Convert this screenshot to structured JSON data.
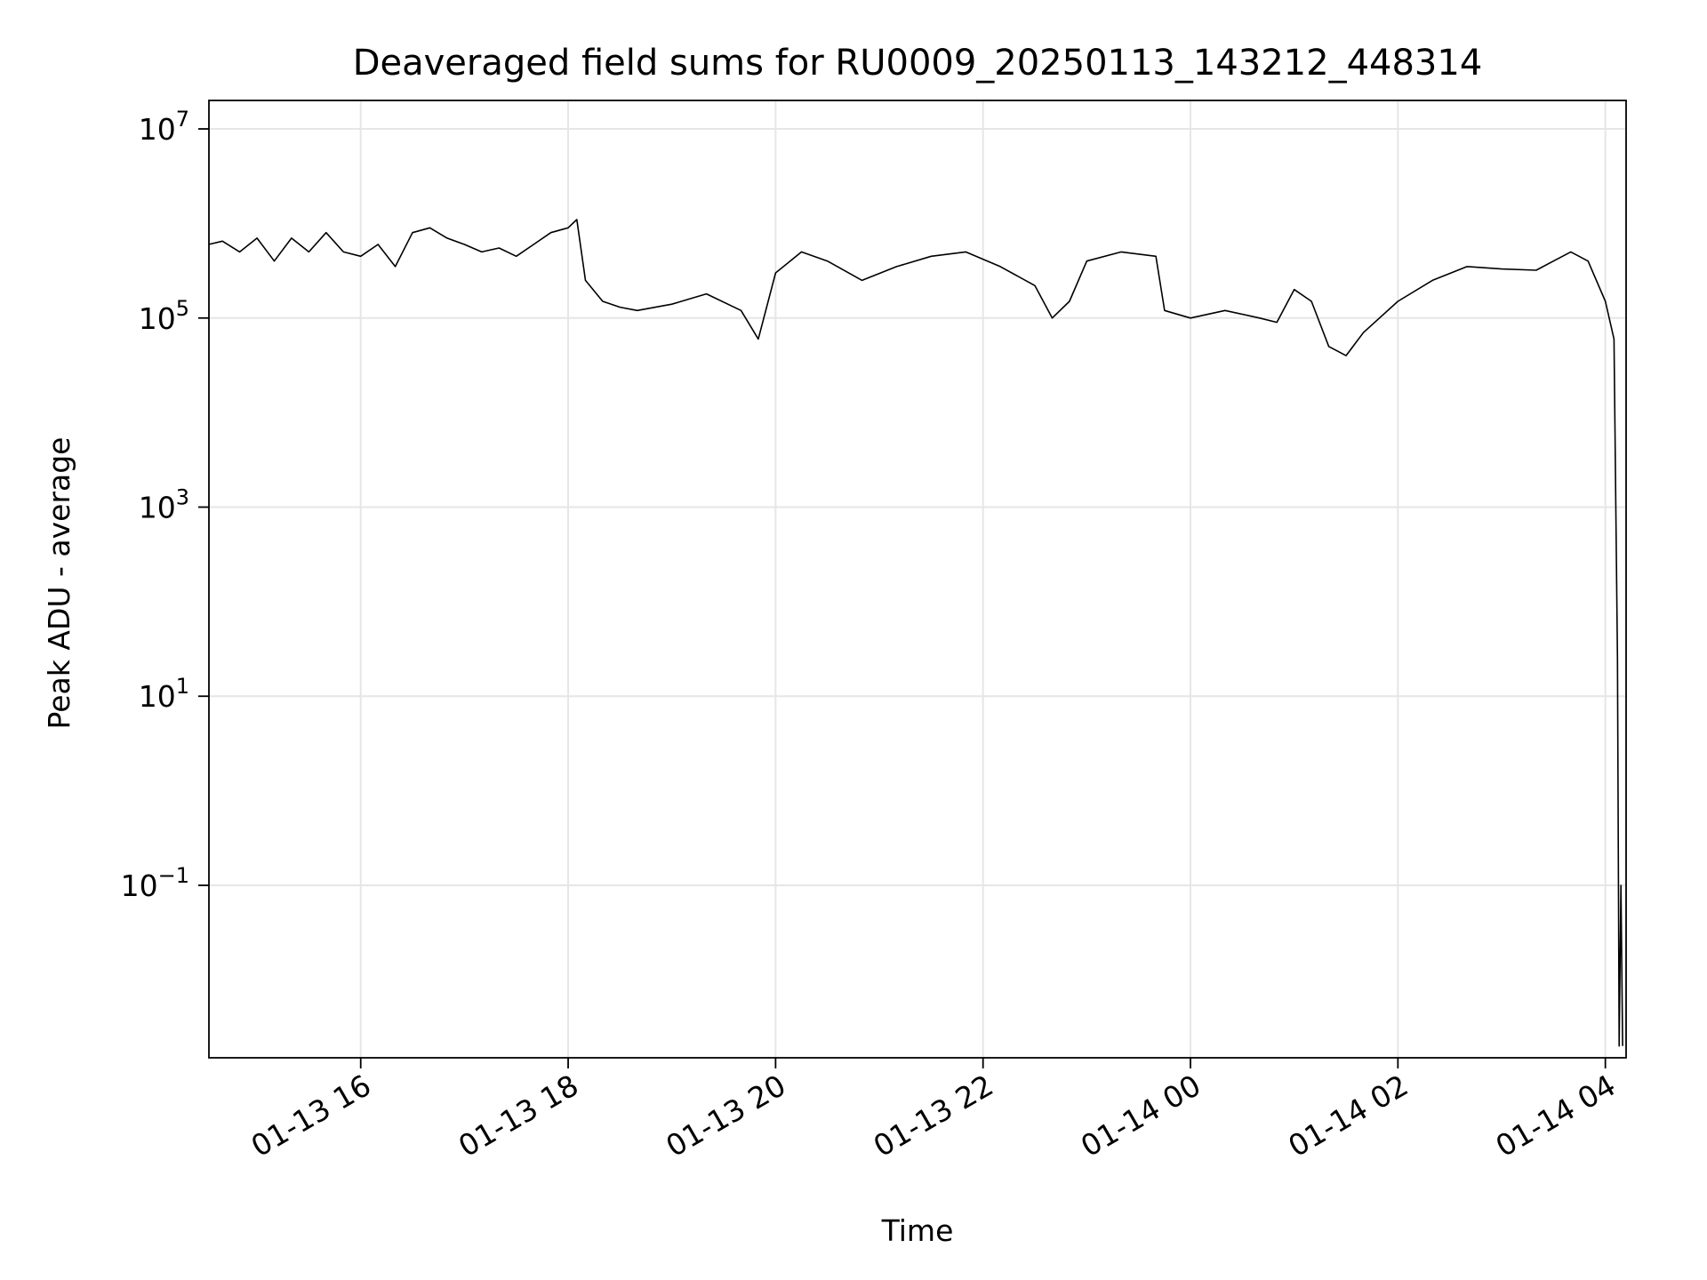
{
  "chart_data": {
    "type": "line",
    "title": "Deaveraged field sums for RU0009_20250113_143212_448314",
    "xlabel": "Time",
    "ylabel": "Peak ADU - average",
    "x_axis": {
      "kind": "datetime",
      "range": [
        "2025-01-13T14:32:12",
        "2025-01-14T04:12:00"
      ],
      "ticks": [
        {
          "value": "2025-01-13T16:00",
          "label": "01-13 16"
        },
        {
          "value": "2025-01-13T18:00",
          "label": "01-13 18"
        },
        {
          "value": "2025-01-13T20:00",
          "label": "01-13 20"
        },
        {
          "value": "2025-01-13T22:00",
          "label": "01-13 22"
        },
        {
          "value": "2025-01-14T00:00",
          "label": "01-14 00"
        },
        {
          "value": "2025-01-14T02:00",
          "label": "01-14 02"
        },
        {
          "value": "2025-01-14T04:00",
          "label": "01-14 04"
        }
      ],
      "tick_label_rotation": 30
    },
    "y_axis": {
      "scale": "log",
      "ylim": [
        0.0015,
        20000000
      ],
      "ticks": [
        {
          "value": 10000000,
          "base": "10",
          "exp": "7"
        },
        {
          "value": 100000,
          "base": "10",
          "exp": "5"
        },
        {
          "value": 1000,
          "base": "10",
          "exp": "3"
        },
        {
          "value": 10,
          "base": "10",
          "exp": "1"
        },
        {
          "value": 0.1,
          "base": "10",
          "exp": "−1"
        }
      ]
    },
    "grid": true,
    "series": [
      {
        "color": "#000000",
        "points": [
          [
            "2025-01-13T14:32",
            600000
          ],
          [
            "2025-01-13T14:40",
            650000
          ],
          [
            "2025-01-13T14:50",
            500000
          ],
          [
            "2025-01-13T15:00",
            700000
          ],
          [
            "2025-01-13T15:10",
            400000
          ],
          [
            "2025-01-13T15:20",
            700000
          ],
          [
            "2025-01-13T15:30",
            500000
          ],
          [
            "2025-01-13T15:40",
            800000
          ],
          [
            "2025-01-13T15:50",
            500000
          ],
          [
            "2025-01-13T16:00",
            450000
          ],
          [
            "2025-01-13T16:10",
            600000
          ],
          [
            "2025-01-13T16:20",
            350000
          ],
          [
            "2025-01-13T16:30",
            800000
          ],
          [
            "2025-01-13T16:40",
            900000
          ],
          [
            "2025-01-13T16:50",
            700000
          ],
          [
            "2025-01-13T17:00",
            600000
          ],
          [
            "2025-01-13T17:10",
            500000
          ],
          [
            "2025-01-13T17:20",
            550000
          ],
          [
            "2025-01-13T17:30",
            450000
          ],
          [
            "2025-01-13T17:40",
            600000
          ],
          [
            "2025-01-13T17:50",
            800000
          ],
          [
            "2025-01-13T18:00",
            900000
          ],
          [
            "2025-01-13T18:05",
            1100000
          ],
          [
            "2025-01-13T18:10",
            250000
          ],
          [
            "2025-01-13T18:20",
            150000
          ],
          [
            "2025-01-13T18:30",
            130000
          ],
          [
            "2025-01-13T18:40",
            120000
          ],
          [
            "2025-01-13T19:00",
            140000
          ],
          [
            "2025-01-13T19:20",
            180000
          ],
          [
            "2025-01-13T19:40",
            120000
          ],
          [
            "2025-01-13T19:50",
            60000
          ],
          [
            "2025-01-13T20:00",
            300000
          ],
          [
            "2025-01-13T20:15",
            500000
          ],
          [
            "2025-01-13T20:30",
            400000
          ],
          [
            "2025-01-13T20:50",
            250000
          ],
          [
            "2025-01-13T21:10",
            350000
          ],
          [
            "2025-01-13T21:30",
            450000
          ],
          [
            "2025-01-13T21:50",
            500000
          ],
          [
            "2025-01-13T22:10",
            350000
          ],
          [
            "2025-01-13T22:30",
            220000
          ],
          [
            "2025-01-13T22:40",
            100000
          ],
          [
            "2025-01-13T22:50",
            150000
          ],
          [
            "2025-01-13T23:00",
            400000
          ],
          [
            "2025-01-13T23:20",
            500000
          ],
          [
            "2025-01-13T23:40",
            450000
          ],
          [
            "2025-01-13T23:45",
            120000
          ],
          [
            "2025-01-14T00:00",
            100000
          ],
          [
            "2025-01-14T00:20",
            120000
          ],
          [
            "2025-01-14T00:40",
            100000
          ],
          [
            "2025-01-14T00:50",
            90000
          ],
          [
            "2025-01-14T01:00",
            200000
          ],
          [
            "2025-01-14T01:10",
            150000
          ],
          [
            "2025-01-14T01:20",
            50000
          ],
          [
            "2025-01-14T01:30",
            40000
          ],
          [
            "2025-01-14T01:40",
            70000
          ],
          [
            "2025-01-14T02:00",
            150000
          ],
          [
            "2025-01-14T02:20",
            250000
          ],
          [
            "2025-01-14T02:40",
            350000
          ],
          [
            "2025-01-14T03:00",
            330000
          ],
          [
            "2025-01-14T03:20",
            320000
          ],
          [
            "2025-01-14T03:30",
            400000
          ],
          [
            "2025-01-14T03:40",
            500000
          ],
          [
            "2025-01-14T03:50",
            400000
          ],
          [
            "2025-01-14T04:00",
            150000
          ],
          [
            "2025-01-14T04:05",
            60000
          ],
          [
            "2025-01-14T04:07",
            25
          ],
          [
            "2025-01-14T04:08",
            0.002
          ],
          [
            "2025-01-14T04:09",
            0.1
          ],
          [
            "2025-01-14T04:10",
            0.002
          ]
        ]
      }
    ]
  }
}
